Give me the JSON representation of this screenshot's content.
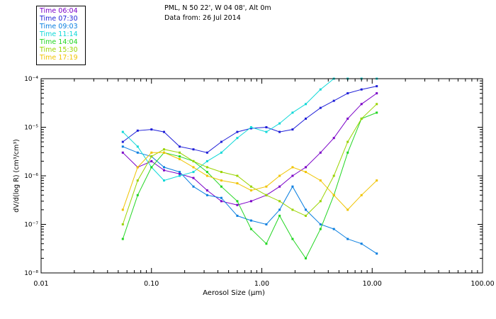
{
  "header": {
    "line1": "PML, N 50 22', W 04 08', Alt 0m",
    "line2": "Data from: 26 Jul 2014"
  },
  "legend": [
    {
      "label": "Time 06:04",
      "color": "#7a00c8"
    },
    {
      "label": "Time 07:30",
      "color": "#1f1fd8"
    },
    {
      "label": "Time 09:03",
      "color": "#0a7fe0"
    },
    {
      "label": "Time 11:14",
      "color": "#10d8d8"
    },
    {
      "label": "Time 14:04",
      "color": "#22d622"
    },
    {
      "label": "Time 15:30",
      "color": "#9ad400"
    },
    {
      "label": "Time 17:19",
      "color": "#f0c400"
    }
  ],
  "chart_data": {
    "type": "line",
    "xscale": "log",
    "yscale": "log",
    "xlim": [
      0.01,
      100
    ],
    "ylim": [
      1e-08,
      0.0001
    ],
    "xlabel": "Aerosol Size (μm)",
    "ylabel": "dV/d(log R) (cm³/cm³)",
    "x_tick_labels": [
      "0.01",
      "0.10",
      "1.00",
      "10.00",
      "100.00"
    ],
    "y_tick_labels": [
      "10⁻⁸",
      "10⁻⁷",
      "10⁻⁶",
      "10⁻⁵",
      "10⁻⁴"
    ],
    "x": [
      0.055,
      0.075,
      0.1,
      0.13,
      0.18,
      0.24,
      0.32,
      0.43,
      0.6,
      0.8,
      1.1,
      1.45,
      1.9,
      2.5,
      3.4,
      4.5,
      6.0,
      8.0,
      11.0
    ],
    "series": [
      {
        "name": "Time 06:04",
        "color": "#7a00c8",
        "values": [
          3e-06,
          1.5e-06,
          2e-06,
          1.3e-06,
          1.1e-06,
          9e-07,
          5e-07,
          3e-07,
          2.5e-07,
          3e-07,
          4e-07,
          6e-07,
          1e-06,
          1.5e-06,
          3e-06,
          6e-06,
          1.5e-05,
          3e-05,
          5e-05
        ]
      },
      {
        "name": "Time 07:30",
        "color": "#1f1fd8",
        "values": [
          5e-06,
          8.5e-06,
          9e-06,
          8e-06,
          4e-06,
          3.5e-06,
          3e-06,
          5e-06,
          8e-06,
          9.5e-06,
          1e-05,
          8e-06,
          9e-06,
          1.5e-05,
          2.5e-05,
          3.5e-05,
          5e-05,
          6e-05,
          7e-05
        ]
      },
      {
        "name": "Time 09:03",
        "color": "#0a7fe0",
        "values": [
          4e-06,
          3e-06,
          2.5e-06,
          1.5e-06,
          1.2e-06,
          6e-07,
          4e-07,
          3.5e-07,
          1.5e-07,
          1.2e-07,
          1e-07,
          2e-07,
          6e-07,
          2e-07,
          1e-07,
          8e-08,
          5e-08,
          4e-08,
          2.5e-08
        ]
      },
      {
        "name": "Time 11:14",
        "color": "#10d8d8",
        "values": [
          8e-06,
          4e-06,
          1.5e-06,
          8e-07,
          1e-06,
          1.2e-06,
          2e-06,
          3e-06,
          6e-06,
          1e-05,
          8e-06,
          1.2e-05,
          2e-05,
          3e-05,
          6e-05,
          0.0001,
          0.0001,
          0.0001,
          0.0001
        ]
      },
      {
        "name": "Time 14:04",
        "color": "#22d622",
        "values": [
          5e-08,
          4e-07,
          1.5e-06,
          3e-06,
          2.5e-06,
          2e-06,
          1.2e-06,
          6e-07,
          3e-07,
          8e-08,
          4e-08,
          1.5e-07,
          5e-08,
          2e-08,
          8e-08,
          4e-07,
          3e-06,
          1.5e-05,
          2e-05
        ]
      },
      {
        "name": "Time 15:30",
        "color": "#9ad400",
        "values": [
          1e-07,
          8e-07,
          2.5e-06,
          3.5e-06,
          3e-06,
          2e-06,
          1.5e-06,
          1.2e-06,
          1e-06,
          6e-07,
          4e-07,
          3e-07,
          2e-07,
          1.5e-07,
          3e-07,
          1e-06,
          5e-06,
          1.5e-05,
          3e-05
        ]
      },
      {
        "name": "Time 17:19",
        "color": "#f0c400",
        "values": [
          2e-07,
          1.5e-06,
          3e-06,
          3e-06,
          2.2e-06,
          1.5e-06,
          1e-06,
          8e-07,
          7e-07,
          5e-07,
          6e-07,
          1e-06,
          1.5e-06,
          1.2e-06,
          8e-07,
          4e-07,
          2e-07,
          4e-07,
          8e-07
        ]
      }
    ]
  }
}
